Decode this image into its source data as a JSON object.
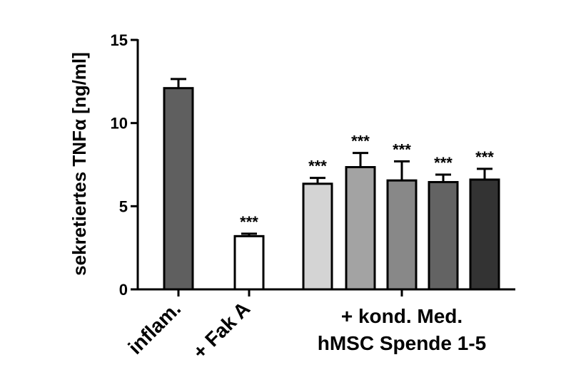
{
  "chart_data": {
    "type": "bar",
    "title": "",
    "ylabel": "sekretiertes TNFα [ng/ml]",
    "ylim": [
      0,
      15
    ],
    "yticks": [
      0,
      5,
      10,
      15
    ],
    "grid": false,
    "bars": [
      {
        "value": 12.1,
        "error": 0.55,
        "color": "#5f5f5f",
        "sig": ""
      },
      {
        "value": 3.2,
        "error": 0.15,
        "color": "#ffffff",
        "sig": "***"
      },
      {
        "value": 6.35,
        "error": 0.35,
        "color": "#d4d4d4",
        "sig": "***"
      },
      {
        "value": 7.35,
        "error": 0.85,
        "color": "#a3a3a3",
        "sig": "***"
      },
      {
        "value": 6.55,
        "error": 1.15,
        "color": "#888888",
        "sig": "***"
      },
      {
        "value": 6.45,
        "error": 0.45,
        "color": "#636363",
        "sig": "***"
      },
      {
        "value": 6.6,
        "error": 0.65,
        "color": "#333333",
        "sig": "***"
      }
    ],
    "categories": [
      {
        "label": "inflam."
      },
      {
        "label": "+ Fak A"
      },
      {
        "label_line1": "+ kond. Med.",
        "label_line2": "hMSC Spende 1-5"
      }
    ]
  }
}
